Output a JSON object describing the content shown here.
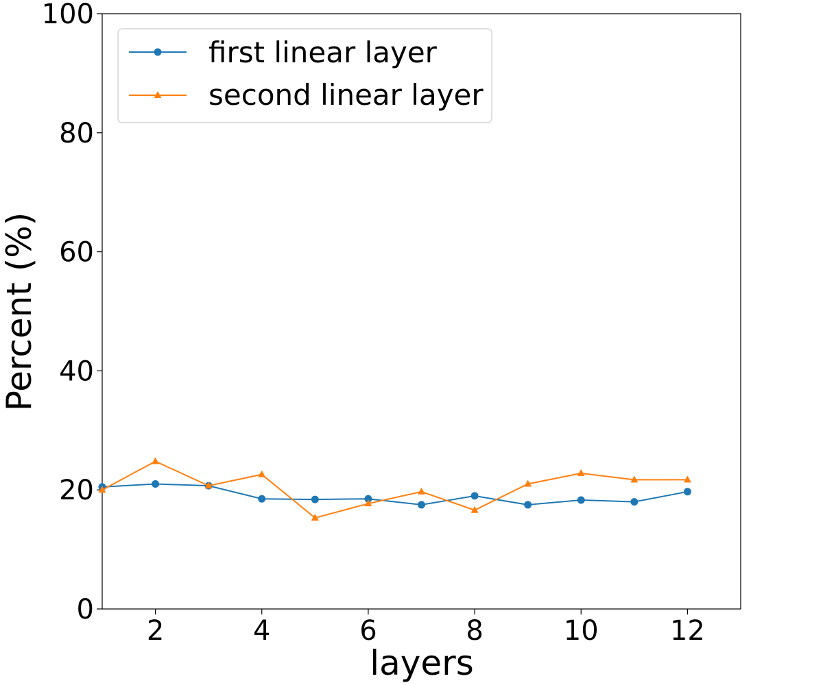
{
  "chart_data": {
    "type": "line",
    "title": "",
    "xlabel": "layers",
    "ylabel": "Percent (%)",
    "xlim": [
      1,
      13
    ],
    "ylim": [
      0,
      100
    ],
    "xticks": [
      2,
      4,
      6,
      8,
      10,
      12
    ],
    "yticks": [
      0,
      20,
      40,
      60,
      80,
      100
    ],
    "grid": false,
    "legend_position": "top-left",
    "x": [
      1,
      2,
      3,
      4,
      5,
      6,
      7,
      8,
      9,
      10,
      11,
      12
    ],
    "series": [
      {
        "name": "first linear layer",
        "color": "#1f77b4",
        "marker": "circle",
        "values": [
          20.5,
          21.0,
          20.7,
          18.5,
          18.4,
          18.5,
          17.5,
          19.0,
          17.5,
          18.3,
          18.0,
          19.7
        ]
      },
      {
        "name": "second linear layer",
        "color": "#ff7f0e",
        "marker": "triangle",
        "values": [
          20.0,
          24.8,
          20.7,
          22.6,
          15.3,
          17.7,
          19.7,
          16.6,
          21.0,
          22.8,
          21.7,
          21.7
        ]
      }
    ]
  }
}
